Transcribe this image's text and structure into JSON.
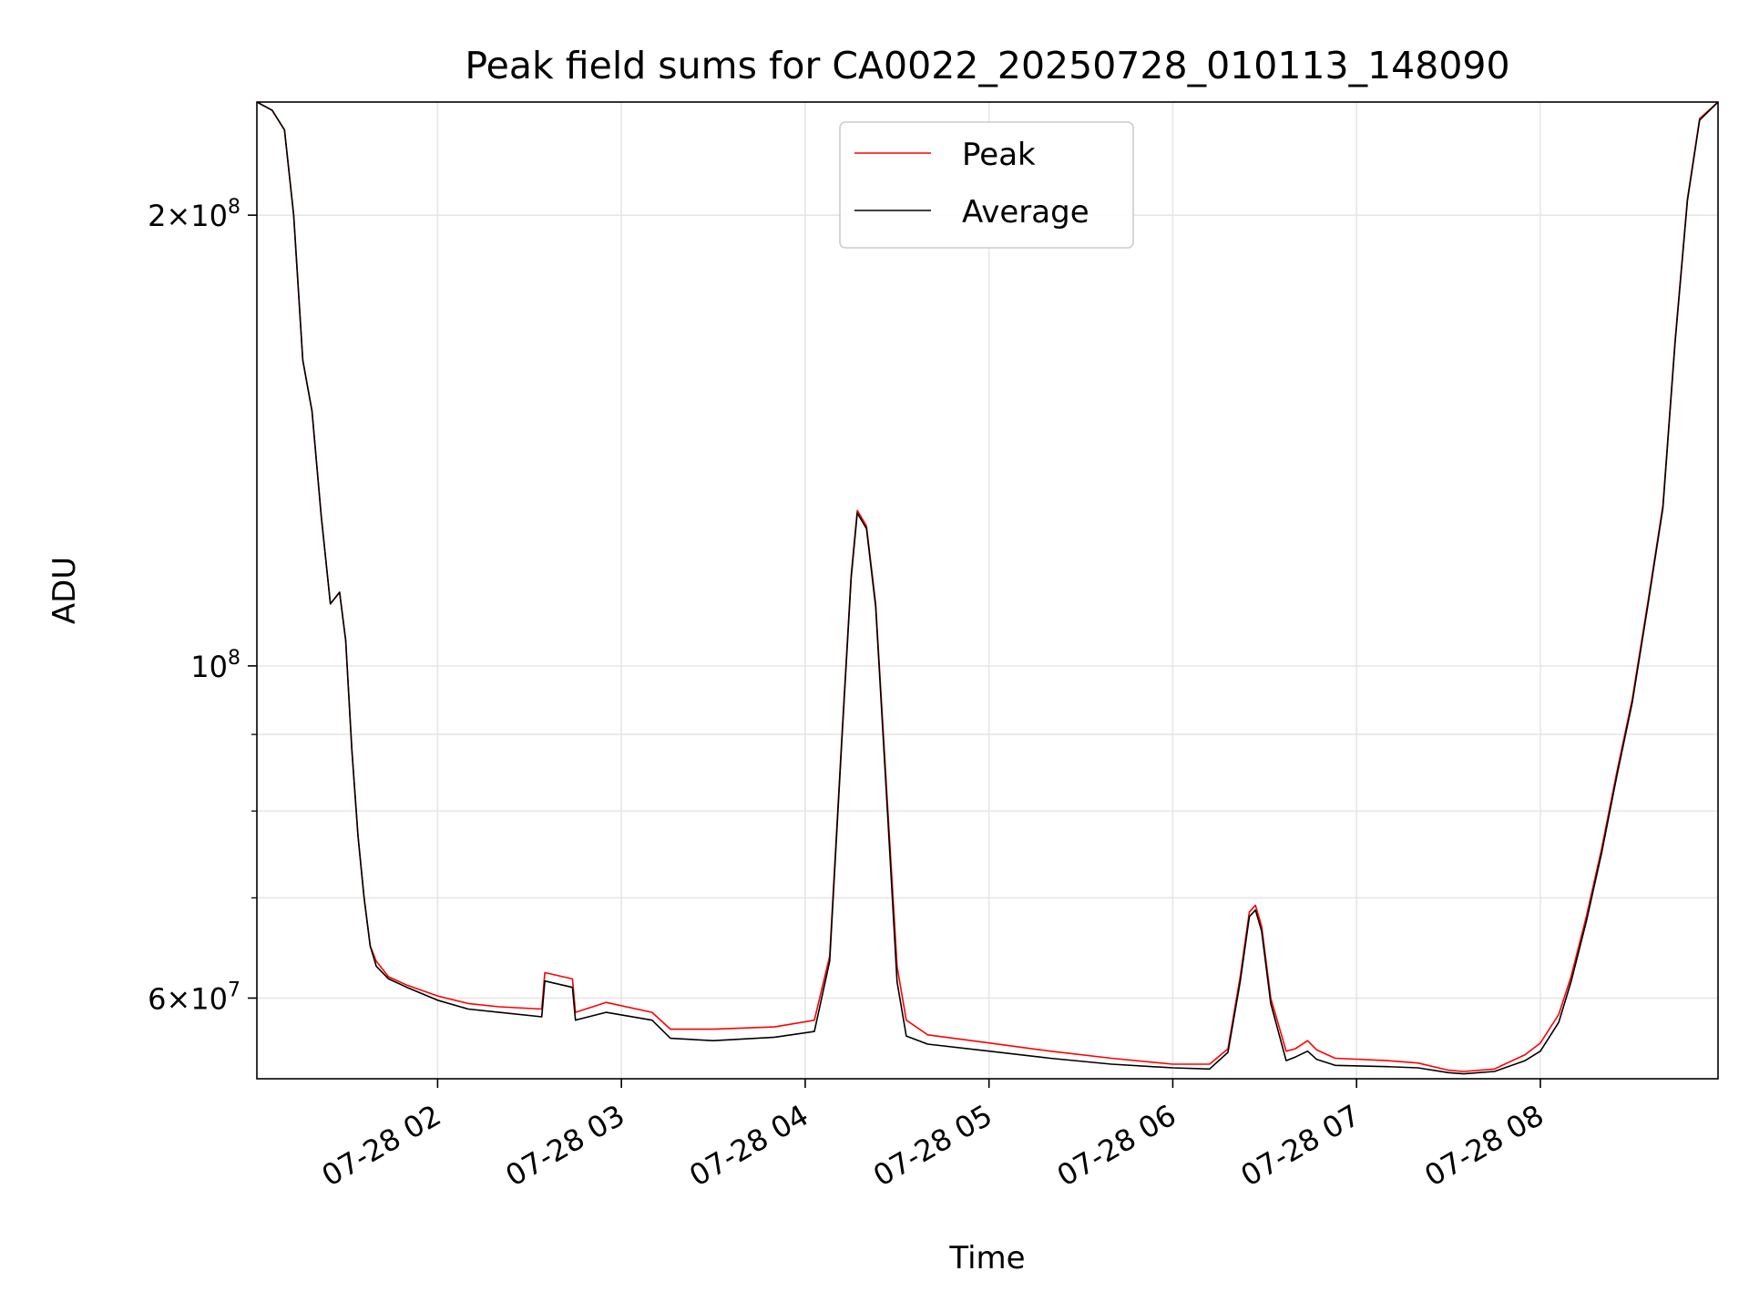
{
  "chart_data": {
    "type": "line",
    "title": "Peak field sums for CA0022_20250728_010113_148090",
    "xlabel": "Time",
    "ylabel": "ADU",
    "yscale": "log",
    "grid": true,
    "legend_position": "upper center",
    "xlim": [
      "2025-07-28 01:01",
      "2025-07-28 08:58"
    ],
    "ylim": [
      53000000,
      238000000
    ],
    "x_ticks": [
      {
        "value": "2025-07-28 02:00",
        "label": "07-28 02"
      },
      {
        "value": "2025-07-28 03:00",
        "label": "07-28 03"
      },
      {
        "value": "2025-07-28 04:00",
        "label": "07-28 04"
      },
      {
        "value": "2025-07-28 05:00",
        "label": "07-28 05"
      },
      {
        "value": "2025-07-28 06:00",
        "label": "07-28 06"
      },
      {
        "value": "2025-07-28 07:00",
        "label": "07-28 07"
      },
      {
        "value": "2025-07-28 08:00",
        "label": "07-28 08"
      }
    ],
    "y_major_ticks": [
      {
        "value": 100000000,
        "base": "10",
        "exp": "8",
        "mantissa": ""
      },
      {
        "value": 200000000,
        "base": "10",
        "exp": "8",
        "mantissa": "2"
      },
      {
        "value": 60000000,
        "base": "10",
        "exp": "7",
        "mantissa": "6"
      }
    ],
    "y_minor_ticks": [
      70000000,
      80000000,
      90000000
    ],
    "series": [
      {
        "name": "Peak",
        "color": "#ff0000",
        "x": [
          "2025-07-28 01:01",
          "2025-07-28 01:06",
          "2025-07-28 01:10",
          "2025-07-28 01:13",
          "2025-07-28 01:16",
          "2025-07-28 01:19",
          "2025-07-28 01:22",
          "2025-07-28 01:25",
          "2025-07-28 01:28",
          "2025-07-28 01:30",
          "2025-07-28 01:32",
          "2025-07-28 01:34",
          "2025-07-28 01:36",
          "2025-07-28 01:38",
          "2025-07-28 01:40",
          "2025-07-28 01:44",
          "2025-07-28 01:50",
          "2025-07-28 02:00",
          "2025-07-28 02:10",
          "2025-07-28 02:20",
          "2025-07-28 02:34",
          "2025-07-28 02:35",
          "2025-07-28 02:44",
          "2025-07-28 02:45",
          "2025-07-28 02:55",
          "2025-07-28 03:10",
          "2025-07-28 03:16",
          "2025-07-28 03:30",
          "2025-07-28 03:50",
          "2025-07-28 04:03",
          "2025-07-28 04:08",
          "2025-07-28 04:12",
          "2025-07-28 04:15",
          "2025-07-28 04:17",
          "2025-07-28 04:20",
          "2025-07-28 04:23",
          "2025-07-28 04:27",
          "2025-07-28 04:30",
          "2025-07-28 04:33",
          "2025-07-28 04:40",
          "2025-07-28 05:00",
          "2025-07-28 05:20",
          "2025-07-28 05:40",
          "2025-07-28 06:00",
          "2025-07-28 06:12",
          "2025-07-28 06:18",
          "2025-07-28 06:22",
          "2025-07-28 06:25",
          "2025-07-28 06:27",
          "2025-07-28 06:29",
          "2025-07-28 06:32",
          "2025-07-28 06:37",
          "2025-07-28 06:40",
          "2025-07-28 06:44",
          "2025-07-28 06:47",
          "2025-07-28 06:53",
          "2025-07-28 07:10",
          "2025-07-28 07:20",
          "2025-07-28 07:30",
          "2025-07-28 07:35",
          "2025-07-28 07:45",
          "2025-07-28 07:55",
          "2025-07-28 08:00",
          "2025-07-28 08:06",
          "2025-07-28 08:10",
          "2025-07-28 08:15",
          "2025-07-28 08:20",
          "2025-07-28 08:25",
          "2025-07-28 08:30",
          "2025-07-28 08:35",
          "2025-07-28 08:40",
          "2025-07-28 08:44",
          "2025-07-28 08:48",
          "2025-07-28 08:52",
          "2025-07-28 08:58"
        ],
        "y": [
          238000000,
          235000000,
          228000000,
          200000000,
          160000000,
          148000000,
          126000000,
          110000000,
          112000000,
          104000000,
          88000000,
          77000000,
          70000000,
          65000000,
          63500000,
          62000000,
          61200000,
          60200000,
          59500000,
          59200000,
          59000000,
          62400000,
          61800000,
          58700000,
          59600000,
          58700000,
          57200000,
          57200000,
          57400000,
          58000000,
          64000000,
          90000000,
          115000000,
          127000000,
          124000000,
          110000000,
          80000000,
          63000000,
          58000000,
          56700000,
          56000000,
          55300000,
          54700000,
          54200000,
          54200000,
          55500000,
          62000000,
          68500000,
          69200000,
          67000000,
          60000000,
          55300000,
          55500000,
          56200000,
          55400000,
          54700000,
          54500000,
          54300000,
          53700000,
          53600000,
          53800000,
          55000000,
          56000000,
          58500000,
          62000000,
          68000000,
          75500000,
          85000000,
          95000000,
          110000000,
          128000000,
          165000000,
          205000000,
          232000000,
          238000000
        ]
      },
      {
        "name": "Average",
        "color": "#000000",
        "x": [
          "2025-07-28 01:01",
          "2025-07-28 01:06",
          "2025-07-28 01:10",
          "2025-07-28 01:13",
          "2025-07-28 01:16",
          "2025-07-28 01:19",
          "2025-07-28 01:22",
          "2025-07-28 01:25",
          "2025-07-28 01:28",
          "2025-07-28 01:30",
          "2025-07-28 01:32",
          "2025-07-28 01:34",
          "2025-07-28 01:36",
          "2025-07-28 01:38",
          "2025-07-28 01:40",
          "2025-07-28 01:44",
          "2025-07-28 01:50",
          "2025-07-28 02:00",
          "2025-07-28 02:10",
          "2025-07-28 02:20",
          "2025-07-28 02:34",
          "2025-07-28 02:35",
          "2025-07-28 02:44",
          "2025-07-28 02:45",
          "2025-07-28 02:55",
          "2025-07-28 03:10",
          "2025-07-28 03:16",
          "2025-07-28 03:30",
          "2025-07-28 03:50",
          "2025-07-28 04:03",
          "2025-07-28 04:08",
          "2025-07-28 04:12",
          "2025-07-28 04:15",
          "2025-07-28 04:17",
          "2025-07-28 04:20",
          "2025-07-28 04:23",
          "2025-07-28 04:27",
          "2025-07-28 04:30",
          "2025-07-28 04:33",
          "2025-07-28 04:40",
          "2025-07-28 05:00",
          "2025-07-28 05:20",
          "2025-07-28 05:40",
          "2025-07-28 06:00",
          "2025-07-28 06:12",
          "2025-07-28 06:18",
          "2025-07-28 06:22",
          "2025-07-28 06:25",
          "2025-07-28 06:27",
          "2025-07-28 06:29",
          "2025-07-28 06:32",
          "2025-07-28 06:37",
          "2025-07-28 06:40",
          "2025-07-28 06:44",
          "2025-07-28 06:47",
          "2025-07-28 06:53",
          "2025-07-28 07:10",
          "2025-07-28 07:20",
          "2025-07-28 07:30",
          "2025-07-28 07:35",
          "2025-07-28 07:45",
          "2025-07-28 07:55",
          "2025-07-28 08:00",
          "2025-07-28 08:06",
          "2025-07-28 08:10",
          "2025-07-28 08:15",
          "2025-07-28 08:20",
          "2025-07-28 08:25",
          "2025-07-28 08:30",
          "2025-07-28 08:35",
          "2025-07-28 08:40",
          "2025-07-28 08:44",
          "2025-07-28 08:48",
          "2025-07-28 08:52",
          "2025-07-28 08:58"
        ],
        "y": [
          238000000,
          235000000,
          228000000,
          200000000,
          160000000,
          148000000,
          126000000,
          110000000,
          112000000,
          104000000,
          88000000,
          77000000,
          70000000,
          65000000,
          63000000,
          61800000,
          61000000,
          59800000,
          59000000,
          58700000,
          58300000,
          61600000,
          61000000,
          58000000,
          58700000,
          58000000,
          56400000,
          56200000,
          56500000,
          57000000,
          63500000,
          89500000,
          114500000,
          126500000,
          123500000,
          109500000,
          79000000,
          61500000,
          56600000,
          55900000,
          55300000,
          54700000,
          54200000,
          53900000,
          53800000,
          55200000,
          61500000,
          68000000,
          68700000,
          66500000,
          59500000,
          54500000,
          54800000,
          55300000,
          54600000,
          54100000,
          54000000,
          53900000,
          53500000,
          53400000,
          53600000,
          54500000,
          55300000,
          57800000,
          61500000,
          67500000,
          75000000,
          84500000,
          94500000,
          109500000,
          127500000,
          164500000,
          204500000,
          231500000,
          238000000
        ]
      }
    ]
  }
}
